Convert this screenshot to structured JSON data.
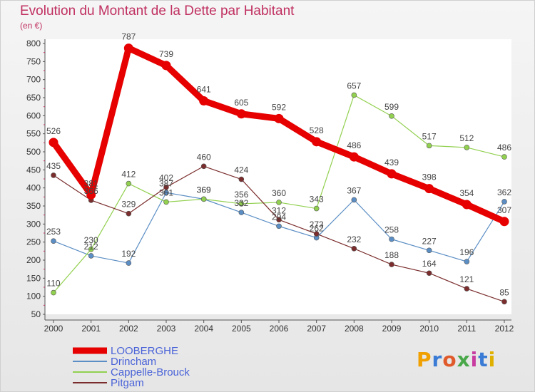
{
  "chart_data": {
    "type": "line",
    "title": "Evolution du Montant de la Dette par Habitant",
    "subtitle": "(en €)",
    "x": [
      "2000",
      "2001",
      "2002",
      "2003",
      "2004",
      "2005",
      "2006",
      "2007",
      "2008",
      "2009",
      "2010",
      "2011",
      "2012"
    ],
    "ylim": [
      50,
      800
    ],
    "yticks": [
      50,
      100,
      150,
      200,
      250,
      300,
      350,
      400,
      450,
      500,
      550,
      600,
      650,
      700,
      750,
      800
    ],
    "grid": false,
    "legend_position": "bottom-left",
    "series": [
      {
        "name": "LOOBERGHE",
        "color": "#e60000",
        "emphasis": true,
        "values": [
          526,
          381,
          787,
          739,
          641,
          605,
          592,
          528,
          486,
          439,
          398,
          354,
          307
        ],
        "labels": [
          "526",
          "",
          "787",
          "739",
          "641",
          "605",
          "592",
          "528",
          "486",
          "439",
          "398",
          "354",
          "307"
        ]
      },
      {
        "name": "Drincham",
        "color": "#5b8ec4",
        "emphasis": false,
        "values": [
          253,
          212,
          192,
          387,
          369,
          332,
          294,
          262,
          367,
          258,
          227,
          196,
          362
        ],
        "labels": [
          "253",
          "212",
          "192",
          "387",
          "369",
          "332",
          "294",
          "262",
          "367",
          "258",
          "227",
          "196",
          "362"
        ]
      },
      {
        "name": "Cappelle-Brouck",
        "color": "#92d050",
        "emphasis": false,
        "values": [
          110,
          230,
          412,
          361,
          369,
          356,
          360,
          343,
          657,
          599,
          517,
          512,
          486
        ],
        "labels": [
          "110",
          "230",
          "412",
          "361",
          "369",
          "356",
          "360",
          "343",
          "657",
          "599",
          "517",
          "512",
          "486"
        ]
      },
      {
        "name": "Pitgam",
        "color": "#7b2d2d",
        "emphasis": false,
        "values": [
          435,
          366,
          329,
          402,
          460,
          424,
          312,
          273,
          232,
          188,
          164,
          121,
          85
        ],
        "labels": [
          "435",
          "366",
          "329",
          "402",
          "460",
          "424",
          "312",
          "273",
          "232",
          "188",
          "164",
          "121",
          "85"
        ]
      }
    ],
    "extra_labels": [
      {
        "x": "2001",
        "text": "381"
      }
    ]
  },
  "logo": {
    "text": "Proxiti"
  }
}
